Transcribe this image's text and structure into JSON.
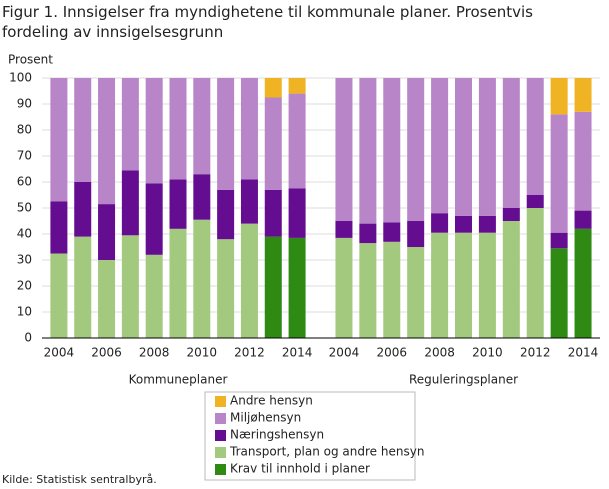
{
  "chart_data": {
    "type": "bar",
    "stacked": true,
    "title": "Figur 1. Innsigelser fra myndighetene til kommunale planer. Prosentvis fordeling av innsigelsesgrunn",
    "y_label": "Prosent",
    "source": "Kilde: Statistisk sentralbyrå.",
    "group_labels": [
      "Kommuneplaner",
      "Reguleringsplaner"
    ],
    "categories": [
      [
        2004,
        null,
        2006,
        null,
        2008,
        null,
        2010,
        null,
        2012,
        null,
        2014
      ],
      [
        2004,
        null,
        2006,
        null,
        2008,
        null,
        2010,
        null,
        2012,
        null,
        2014
      ]
    ],
    "ylim": [
      0,
      100
    ],
    "yticks": [
      0,
      10,
      20,
      30,
      40,
      50,
      60,
      70,
      80,
      90,
      100
    ],
    "grid": true,
    "series": [
      {
        "name": "Krav til innhold i planer",
        "color": "#2f8a14",
        "values": [
          [
            null,
            null,
            null,
            null,
            null,
            null,
            null,
            null,
            null,
            39,
            38.5
          ],
          [
            null,
            null,
            null,
            null,
            null,
            null,
            null,
            null,
            null,
            34.5,
            42
          ]
        ]
      },
      {
        "name": "Transport, plan og andre hensyn",
        "color": "#a3c97e",
        "values": [
          [
            32.5,
            39,
            30,
            39.5,
            32,
            42,
            45.5,
            38,
            44,
            null,
            null
          ],
          [
            38.5,
            36.5,
            37,
            35,
            40.5,
            40.5,
            40.5,
            45,
            50,
            null,
            null
          ]
        ]
      },
      {
        "name": "Næringshensyn",
        "color": "#640d91",
        "values": [
          [
            20,
            21,
            21.5,
            25,
            27.5,
            19,
            17.5,
            19,
            17,
            18,
            19
          ],
          [
            6.5,
            7.5,
            7.5,
            10,
            7.5,
            6.5,
            6.5,
            5,
            5,
            6,
            7
          ]
        ]
      },
      {
        "name": "Miljøhensyn",
        "color": "#b785c8",
        "values": [
          [
            47.5,
            40,
            48.5,
            35.5,
            40.5,
            39,
            37,
            43,
            39,
            35.5,
            36.5
          ],
          [
            55,
            56,
            55.5,
            55,
            52,
            53,
            53,
            50,
            45,
            45.5,
            38
          ]
        ]
      },
      {
        "name": "Andre hensyn",
        "color": "#f0b323",
        "values": [
          [
            null,
            null,
            null,
            null,
            null,
            null,
            null,
            null,
            null,
            7.5,
            6
          ],
          [
            null,
            null,
            null,
            null,
            null,
            null,
            null,
            null,
            null,
            14,
            13
          ]
        ]
      }
    ]
  }
}
